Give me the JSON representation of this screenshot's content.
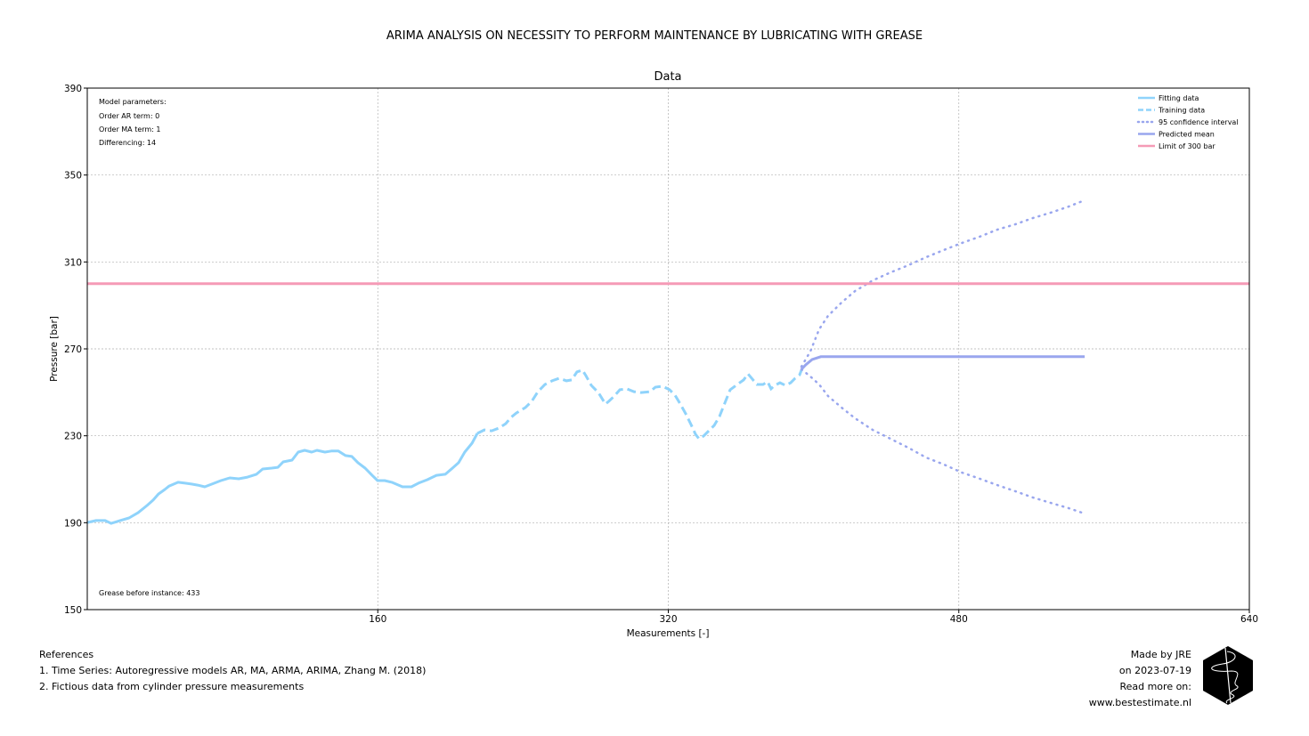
{
  "suptitle": "ARIMA ANALYSIS ON NECESSITY TO PERFORM MAINTENANCE BY LUBRICATING WITH GREASE",
  "references": {
    "heading": "References",
    "items": [
      "1. Time Series: Autoregressive models AR, MA, ARMA, ARIMA, Zhang M. (2018)",
      "2. Fictious data from cylinder pressure measurements"
    ]
  },
  "credits": [
    "Made by JRE",
    "on 2023-07-19",
    "Read more on:",
    "www.bestestimate.nl"
  ],
  "logo": {
    "icon": "hexagon-logo-icon"
  },
  "colors": {
    "fitting": "#8fd3fb",
    "training": "#8fd3fb",
    "confidence": "#99a6ee",
    "predicted": "#99a6ee",
    "limit": "#f59ab6",
    "grid": "#b0b0b0"
  },
  "chart_data": {
    "type": "line",
    "title": "Data",
    "xlabel": "Measurements [-]",
    "ylabel": "Pressure [bar]",
    "xlim": [
      0,
      640
    ],
    "ylim": [
      150,
      390
    ],
    "xticks": [
      160,
      320,
      480,
      640
    ],
    "yticks": [
      150,
      190,
      230,
      270,
      310,
      350,
      390
    ],
    "grid": true,
    "legend_position": "top-right",
    "annotations": {
      "model": [
        "Model parameters:",
        "Order AR term: 0",
        "Order MA term: 1",
        "Differencing: 14"
      ],
      "grease": "Grease before instance: 433"
    },
    "series": [
      {
        "name": "Fitting data",
        "style": "solid",
        "points": [
          [
            0,
            190.1
          ],
          [
            4.9,
            191
          ],
          [
            9.8,
            191
          ],
          [
            13.2,
            189.7
          ],
          [
            18.1,
            191
          ],
          [
            23,
            192.2
          ],
          [
            28,
            194.6
          ],
          [
            32.9,
            197.9
          ],
          [
            36.3,
            200.4
          ],
          [
            39.2,
            203.2
          ],
          [
            42.7,
            205.3
          ],
          [
            45.1,
            206.9
          ],
          [
            50,
            208.6
          ],
          [
            53.9,
            208.2
          ],
          [
            57.4,
            207.8
          ],
          [
            60.8,
            207.3
          ],
          [
            64.7,
            206.5
          ],
          [
            68.7,
            207.8
          ],
          [
            73.6,
            209.4
          ],
          [
            78.5,
            210.6
          ],
          [
            83.4,
            210.2
          ],
          [
            88.3,
            211
          ],
          [
            93.2,
            212.3
          ],
          [
            96.6,
            214.7
          ],
          [
            101.5,
            215.1
          ],
          [
            105,
            215.5
          ],
          [
            107.9,
            218
          ],
          [
            112.8,
            218.8
          ],
          [
            116.2,
            222.5
          ],
          [
            119.7,
            223.3
          ],
          [
            123.6,
            222.5
          ],
          [
            126.5,
            223.3
          ],
          [
            130.9,
            222.5
          ],
          [
            134.4,
            223
          ],
          [
            138.3,
            223
          ],
          [
            142.2,
            220.9
          ],
          [
            145.7,
            220.5
          ],
          [
            149.1,
            217.6
          ],
          [
            153,
            215.1
          ],
          [
            156.9,
            211.8
          ],
          [
            159.9,
            209.4
          ],
          [
            163.8,
            209.4
          ],
          [
            167.7,
            208.6
          ],
          [
            173.6,
            206.5
          ],
          [
            178.5,
            206.5
          ],
          [
            182.4,
            208.2
          ],
          [
            187.3,
            209.8
          ],
          [
            192.3,
            211.8
          ],
          [
            197.2,
            212.3
          ],
          [
            201.1,
            215.1
          ],
          [
            204.5,
            217.6
          ],
          [
            207.9,
            222.5
          ],
          [
            211.9,
            226.6
          ],
          [
            214.8,
            231.1
          ]
        ]
      },
      {
        "name": "Training data",
        "style": "dashed",
        "points": [
          [
            214.8,
            231.1
          ],
          [
            218.7,
            232.7
          ],
          [
            222.7,
            232.3
          ],
          [
            226.6,
            233.5
          ],
          [
            230.5,
            235.6
          ],
          [
            233.4,
            238.5
          ],
          [
            236.4,
            240.5
          ],
          [
            241.3,
            243
          ],
          [
            244.7,
            245.8
          ],
          [
            248.2,
            250.3
          ],
          [
            252.1,
            253.6
          ],
          [
            256,
            255.3
          ],
          [
            259.9,
            256.5
          ],
          [
            263.9,
            255.3
          ],
          [
            266.8,
            255.7
          ],
          [
            269.7,
            259.4
          ],
          [
            272.7,
            260.2
          ],
          [
            274.6,
            257.7
          ],
          [
            277.6,
            253.2
          ],
          [
            281.5,
            249.9
          ],
          [
            285.4,
            244.6
          ],
          [
            287.4,
            246
          ],
          [
            290.3,
            248.3
          ],
          [
            293.3,
            251.2
          ],
          [
            297.2,
            251.6
          ],
          [
            301.1,
            250.3
          ],
          [
            305,
            249.9
          ],
          [
            310,
            250.3
          ],
          [
            312.9,
            252.4
          ],
          [
            316.8,
            252.8
          ],
          [
            320.7,
            251.2
          ],
          [
            323.7,
            248.7
          ],
          [
            326.6,
            244.6
          ],
          [
            329.6,
            240.1
          ],
          [
            332.5,
            235.2
          ],
          [
            335,
            230.7
          ],
          [
            336.9,
            228.6
          ],
          [
            339.4,
            229.9
          ],
          [
            342.3,
            232.3
          ],
          [
            345.3,
            234.8
          ],
          [
            348.2,
            238.9
          ],
          [
            350.7,
            244.2
          ],
          [
            354.1,
            251.2
          ],
          [
            358,
            253.6
          ],
          [
            361.5,
            255.7
          ],
          [
            363.9,
            258.5
          ],
          [
            366.4,
            256
          ],
          [
            368.8,
            253.6
          ],
          [
            372.2,
            253.6
          ],
          [
            374.7,
            254.9
          ],
          [
            376.6,
            251.6
          ],
          [
            378.6,
            253.2
          ],
          [
            381.5,
            254.4
          ],
          [
            384.5,
            253.2
          ],
          [
            387.4,
            254.4
          ],
          [
            389.9,
            256.5
          ],
          [
            392.3,
            258
          ],
          [
            393.3,
            260.2
          ]
        ]
      },
      {
        "name": "95 confidence interval",
        "style": "dotted",
        "upper": [
          [
            393.3,
            261.8
          ],
          [
            398.2,
            268.8
          ],
          [
            403.1,
            279
          ],
          [
            408,
            285.2
          ],
          [
            415.4,
            291.3
          ],
          [
            422.8,
            296.6
          ],
          [
            432.6,
            301.5
          ],
          [
            442.4,
            305.2
          ],
          [
            452.2,
            308.5
          ],
          [
            462,
            312.2
          ],
          [
            471.8,
            315.5
          ],
          [
            481.6,
            318.7
          ],
          [
            491.4,
            321.6
          ],
          [
            501.2,
            324.9
          ],
          [
            511,
            327.3
          ],
          [
            520.8,
            330.2
          ],
          [
            530.7,
            332.7
          ],
          [
            540.5,
            335.5
          ],
          [
            549.3,
            338.4
          ]
        ],
        "lower": [
          [
            393.3,
            260.6
          ],
          [
            398.2,
            257.3
          ],
          [
            403.1,
            253.6
          ],
          [
            408,
            248.3
          ],
          [
            415.4,
            243
          ],
          [
            422.8,
            238.1
          ],
          [
            432.6,
            232.7
          ],
          [
            442.4,
            228.6
          ],
          [
            452.2,
            224.5
          ],
          [
            462,
            220
          ],
          [
            471.8,
            216.8
          ],
          [
            481.6,
            213.1
          ],
          [
            491.4,
            210.3
          ],
          [
            501.2,
            207.3
          ],
          [
            511,
            204.5
          ],
          [
            520.8,
            201.6
          ],
          [
            530.7,
            199.1
          ],
          [
            540.5,
            196.7
          ],
          [
            549.3,
            194.2
          ]
        ]
      },
      {
        "name": "Predicted mean",
        "style": "solid",
        "points": [
          [
            393.3,
            260.6
          ],
          [
            395.7,
            262.7
          ],
          [
            399.2,
            265.1
          ],
          [
            404,
            266.4
          ],
          [
            549.3,
            266.4
          ]
        ]
      },
      {
        "name": "Limit of 300 bar",
        "style": "solid",
        "y": 300
      }
    ]
  }
}
